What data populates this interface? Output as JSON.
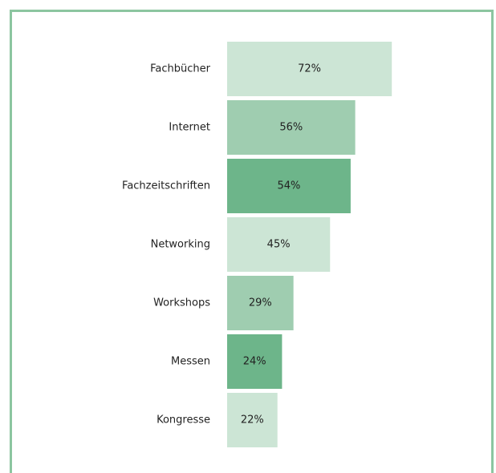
{
  "chart_data": {
    "type": "bar",
    "orientation": "horizontal",
    "categories": [
      "Fachbücher",
      "Internet",
      "Fachzeitschriften",
      "Networking",
      "Workshops",
      "Messen",
      "Kongresse"
    ],
    "values": [
      72,
      56,
      54,
      45,
      29,
      24,
      22
    ],
    "value_labels": [
      "72%",
      "56%",
      "54%",
      "45%",
      "29%",
      "24%",
      "22%"
    ],
    "colors": [
      "#cce5d5",
      "#9fcdb0",
      "#6db58a",
      "#cce5d5",
      "#9fcdb0",
      "#6db58a",
      "#cce5d5"
    ]
  }
}
